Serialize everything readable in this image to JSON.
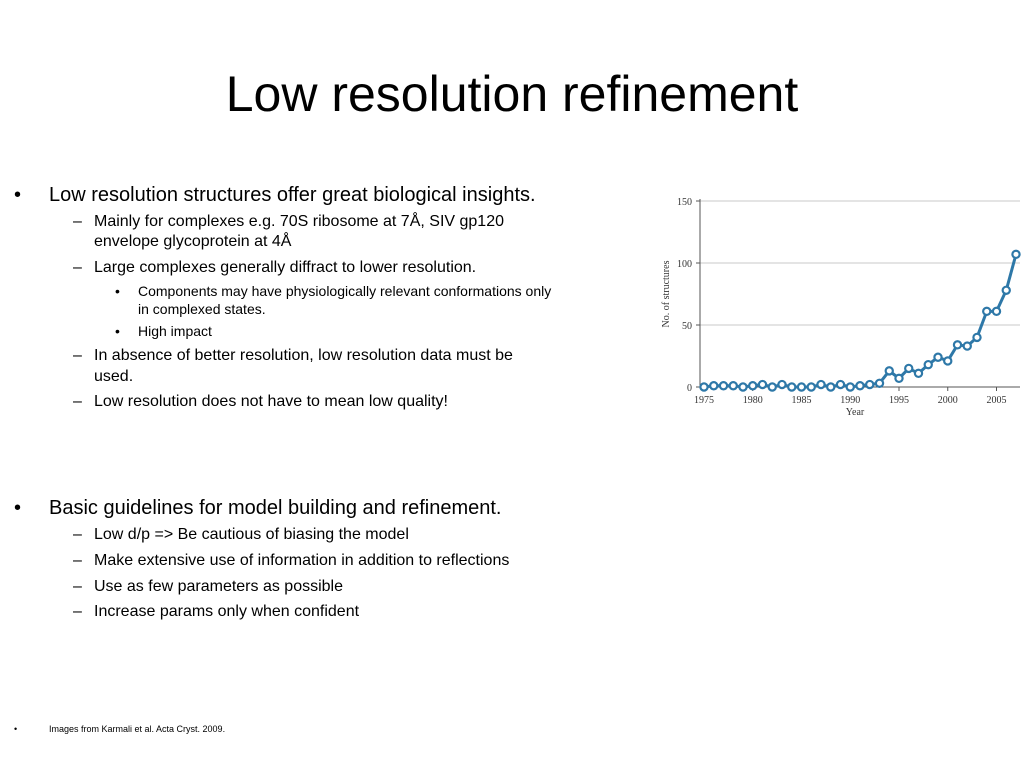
{
  "slide": {
    "title": "Low resolution refinement",
    "bullet_glyph": "•",
    "dash_glyph": "–",
    "section1": {
      "text": "Low resolution structures offer great biological insights.",
      "sub": [
        {
          "lines": [
            "Mainly for complexes e.g. 70S ribosome at 7Å, SIV gp120",
            "envelope glycoprotein at 4Å"
          ]
        },
        {
          "lines": [
            "Large complexes generally diffract to lower resolution."
          ],
          "sub": [
            {
              "lines": [
                "Components may have physiologically relevant conformations only",
                "in complexed states."
              ]
            },
            {
              "lines": [
                "High impact"
              ]
            }
          ]
        },
        {
          "lines": [
            "In absence of better resolution, low resolution data must be",
            "used."
          ]
        },
        {
          "lines": [
            "Low resolution does not have to mean low quality!"
          ]
        }
      ]
    },
    "section2": {
      "text": "Basic guidelines for model building and refinement.",
      "sub": [
        "Low d/p => Be cautious of biasing the model",
        "Make extensive use of information in addition to reflections",
        "Use as few parameters as possible",
        "Increase params only when confident"
      ]
    },
    "footnote": "Images from Karmali et al. Acta Cryst. 2009."
  },
  "chart_data": {
    "type": "line",
    "title": "",
    "xlabel": "Year",
    "ylabel": "No. of structures",
    "xlim": [
      1975,
      2007
    ],
    "ylim": [
      0,
      150
    ],
    "x_ticks": [
      1975,
      1980,
      1985,
      1990,
      1995,
      2000,
      2005
    ],
    "y_ticks": [
      0,
      50,
      100,
      150
    ],
    "grid": true,
    "legend": "none",
    "line_color": "#2e78a8",
    "series": [
      {
        "x": [
          1975,
          1976,
          1977,
          1978,
          1979,
          1980,
          1981,
          1982,
          1983,
          1984,
          1985,
          1986,
          1987,
          1988,
          1989,
          1990,
          1991,
          1992,
          1993,
          1994,
          1995,
          1996,
          1997,
          1998,
          1999,
          2000,
          2001,
          2002,
          2003,
          2004,
          2005,
          2006,
          2007
        ],
        "y": [
          0,
          1,
          1,
          1,
          0,
          1,
          2,
          0,
          2,
          0,
          0,
          0,
          2,
          0,
          2,
          0,
          1,
          2,
          3,
          13,
          7,
          15,
          11,
          18,
          24,
          21,
          34,
          33,
          40,
          61,
          61,
          78,
          107
        ]
      }
    ]
  }
}
